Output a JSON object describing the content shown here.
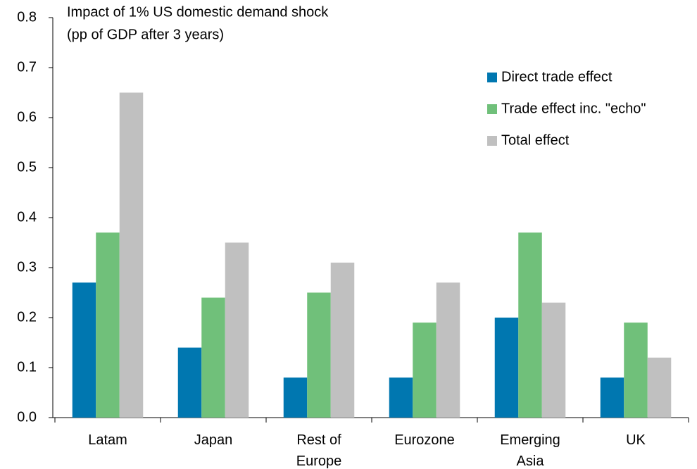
{
  "chart_data": {
    "type": "bar",
    "title": "Impact of 1% US domestic demand shock",
    "subtitle": "(pp of GDP after 3 years)",
    "categories": [
      "Latam",
      "Japan",
      "Rest of Europe",
      "Eurozone",
      "Emerging Asia",
      "UK"
    ],
    "series": [
      {
        "name": "Direct trade effect",
        "color": "#0077b0",
        "values": [
          0.27,
          0.14,
          0.08,
          0.08,
          0.2,
          0.08
        ]
      },
      {
        "name": "Trade effect inc. \"echo\"",
        "color": "#70c07a",
        "values": [
          0.37,
          0.24,
          0.25,
          0.19,
          0.37,
          0.19
        ]
      },
      {
        "name": "Total effect",
        "color": "#c0c0c0",
        "values": [
          0.65,
          0.35,
          0.31,
          0.27,
          0.23,
          0.12
        ]
      }
    ],
    "ylim": [
      0,
      0.8
    ],
    "yticks": [
      {
        "value": 0,
        "label": "0.0"
      },
      0.1,
      0.2,
      0.3,
      0.4,
      0.5,
      0.6,
      0.7,
      0.8
    ],
    "grid": false,
    "legend": "upper right"
  }
}
